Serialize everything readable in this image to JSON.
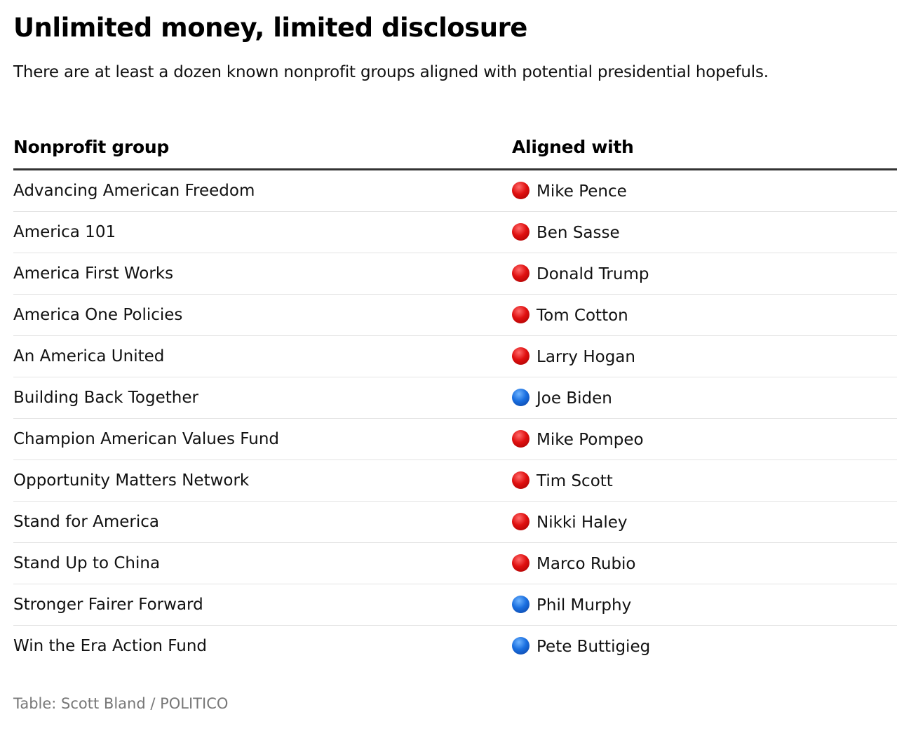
{
  "header": {
    "title": "Unlimited money, limited disclosure",
    "subtitle": "There are at least a dozen known nonprofit groups aligned with potential presidential hopefuls."
  },
  "colors": {
    "republican": "#e01010",
    "democrat": "#1a6fe0"
  },
  "chart_data": {
    "type": "table",
    "columns": [
      "Nonprofit group",
      "Aligned with"
    ],
    "rows": [
      {
        "group": "Advancing American Freedom",
        "aligned": "Mike Pence",
        "party": "red"
      },
      {
        "group": "America 101",
        "aligned": "Ben Sasse",
        "party": "red"
      },
      {
        "group": "America First Works",
        "aligned": "Donald Trump",
        "party": "red"
      },
      {
        "group": "America One Policies",
        "aligned": "Tom Cotton",
        "party": "red"
      },
      {
        "group": "An America United",
        "aligned": "Larry Hogan",
        "party": "red"
      },
      {
        "group": "Building Back Together",
        "aligned": "Joe Biden",
        "party": "blue"
      },
      {
        "group": "Champion American Values Fund",
        "aligned": "Mike Pompeo",
        "party": "red"
      },
      {
        "group": "Opportunity Matters Network",
        "aligned": "Tim Scott",
        "party": "red"
      },
      {
        "group": "Stand for America",
        "aligned": "Nikki Haley",
        "party": "red"
      },
      {
        "group": "Stand Up to China",
        "aligned": "Marco Rubio",
        "party": "red"
      },
      {
        "group": "Stronger Fairer Forward",
        "aligned": "Phil Murphy",
        "party": "blue"
      },
      {
        "group": "Win the Era Action Fund",
        "aligned": "Pete Buttigieg",
        "party": "blue"
      }
    ]
  },
  "footer": {
    "source": "Table: Scott Bland / POLITICO"
  }
}
